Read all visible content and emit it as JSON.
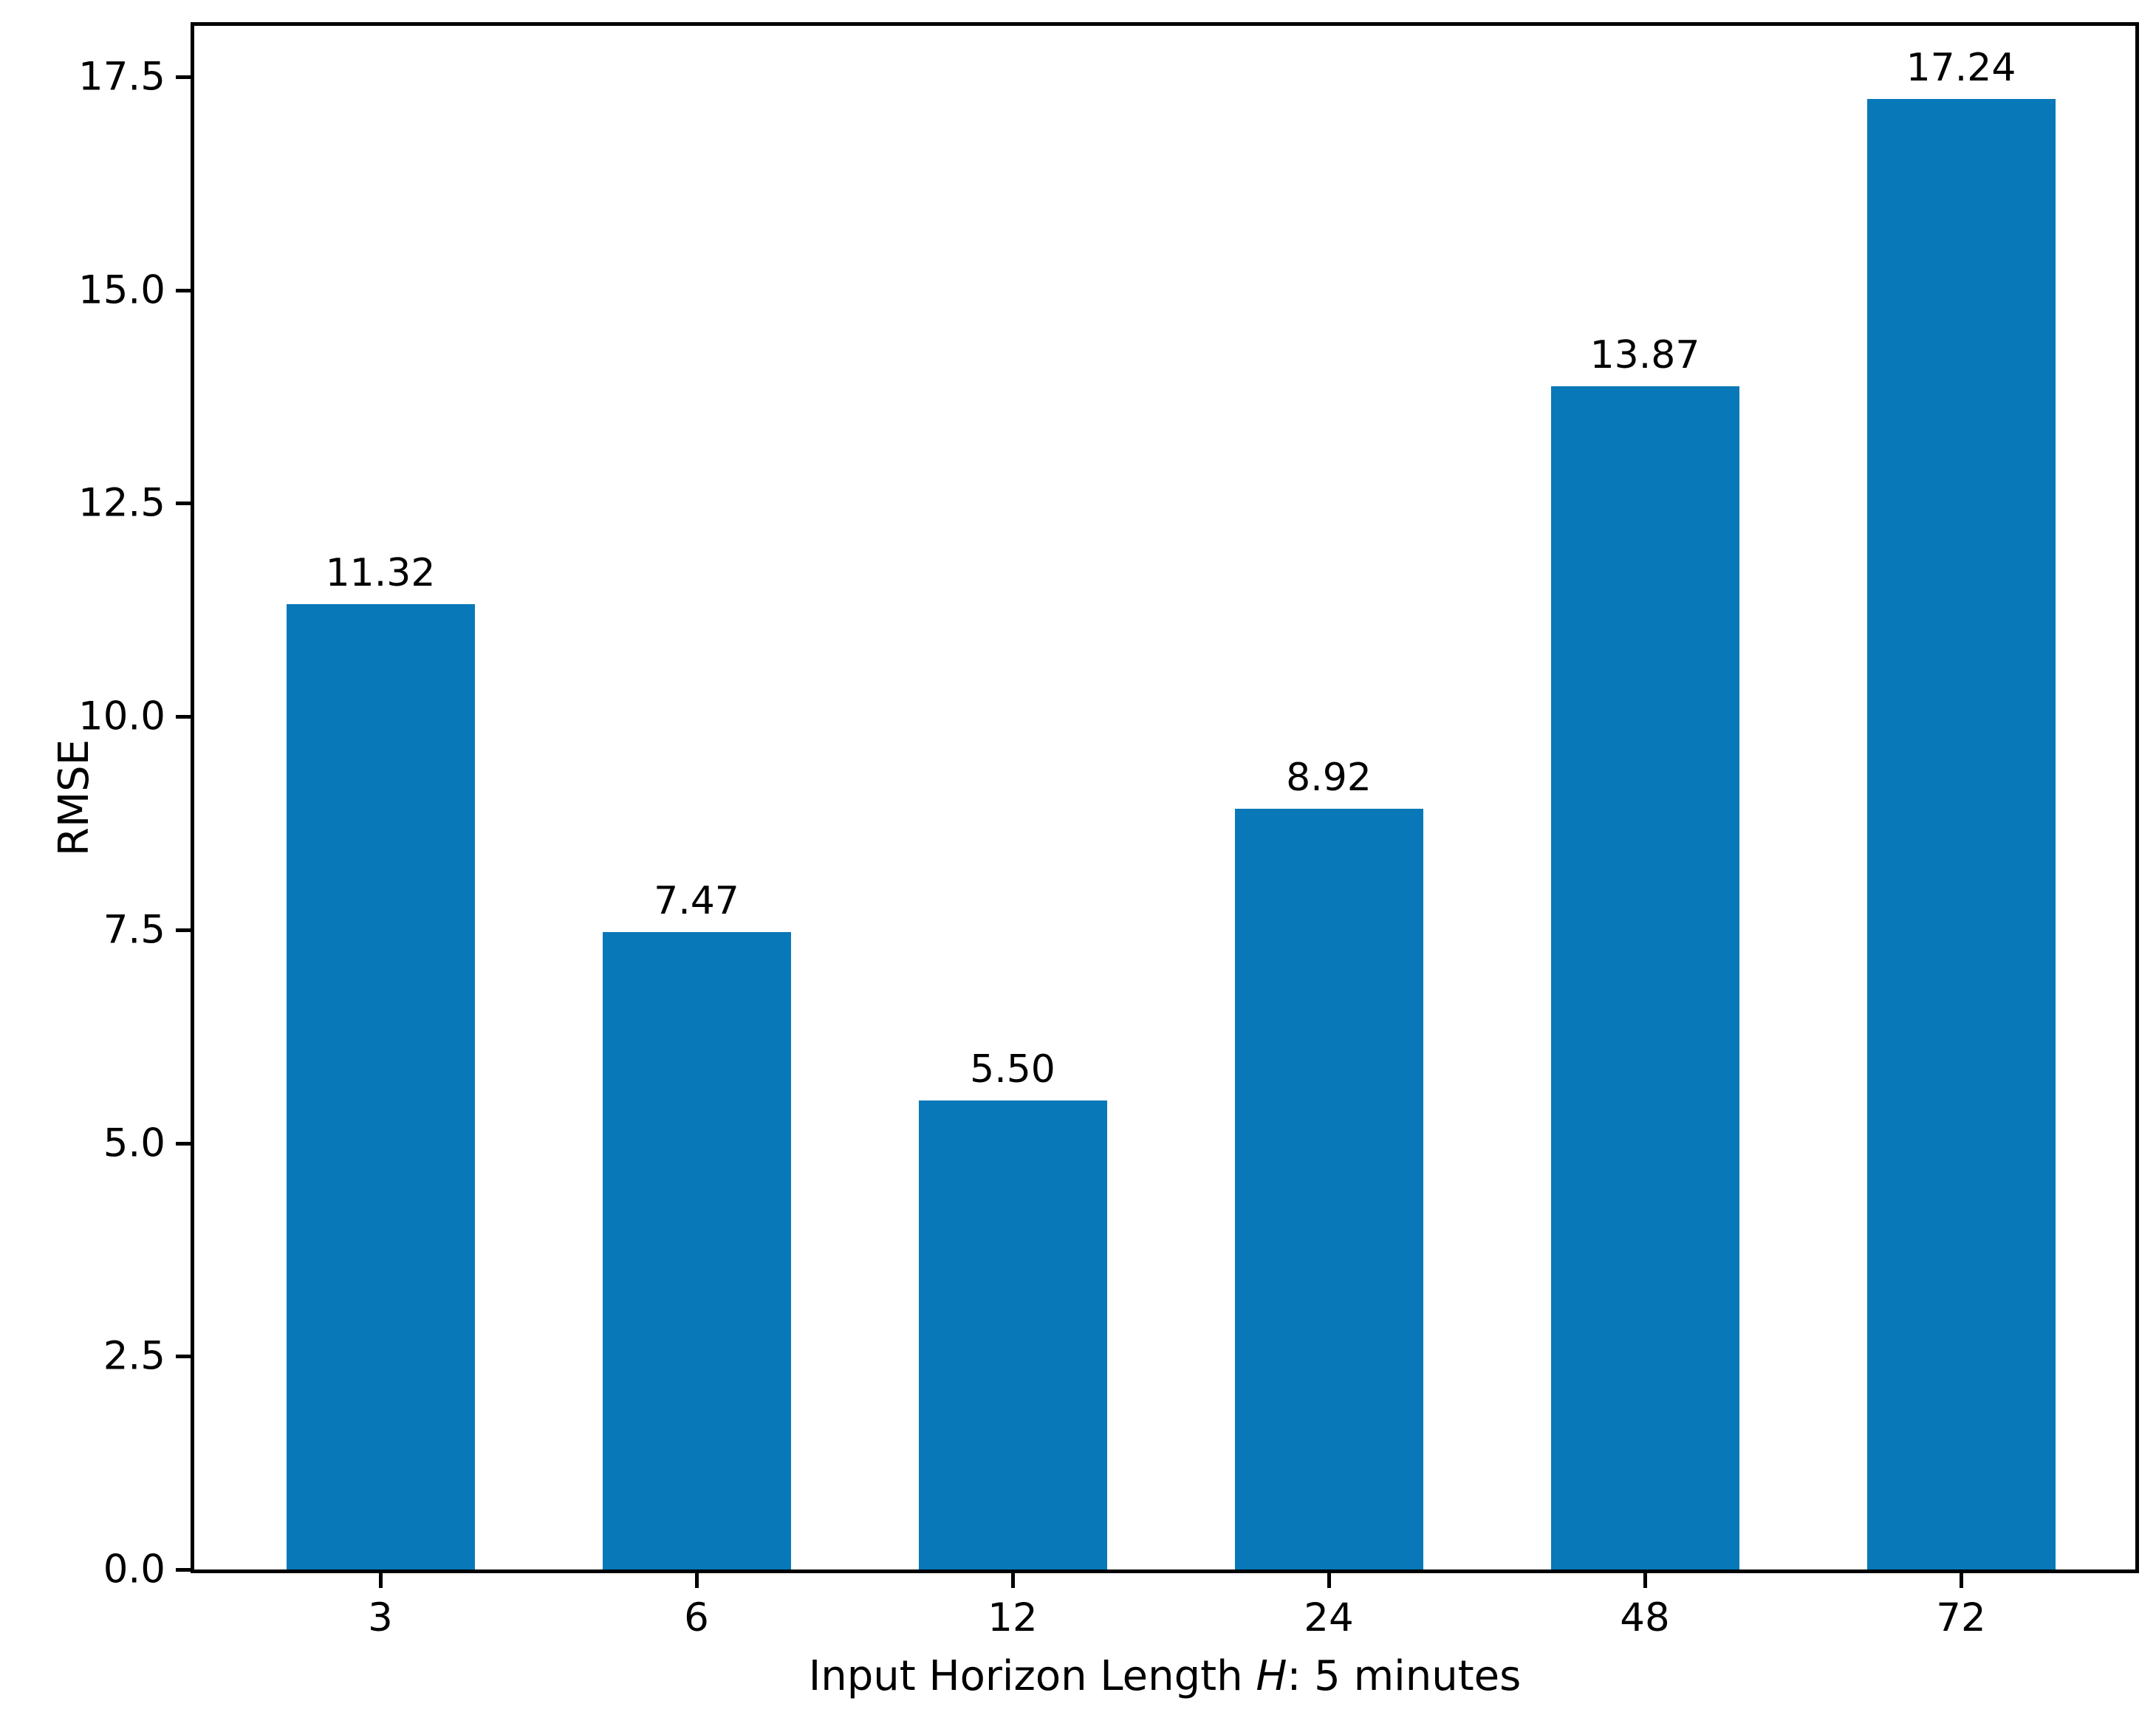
{
  "chart_data": {
    "type": "bar",
    "title": "",
    "categories": [
      "3",
      "6",
      "12",
      "24",
      "48",
      "72"
    ],
    "values": [
      11.32,
      7.47,
      5.5,
      8.92,
      13.87,
      17.24
    ],
    "value_labels": [
      "11.32",
      "7.47",
      "5.50",
      "8.92",
      "13.87",
      "17.24"
    ],
    "xlabel": "Input Horizon Length H: 5 minutes",
    "xlabel_prefix": "Input Horizon Length ",
    "xlabel_var": "H",
    "xlabel_suffix": ": 5 minutes",
    "ylabel": "RMSE",
    "yticks": [
      "0.0",
      "2.5",
      "5.0",
      "7.5",
      "10.0",
      "12.5",
      "15.0",
      "17.5"
    ],
    "ytick_values": [
      0.0,
      2.5,
      5.0,
      7.5,
      10.0,
      12.5,
      15.0,
      17.5
    ],
    "ylim": [
      0,
      18.13
    ],
    "grid": false,
    "legend": "none",
    "bar_color": "#0878b8",
    "axis_color": "#000000",
    "background_color": "#ffffff"
  }
}
